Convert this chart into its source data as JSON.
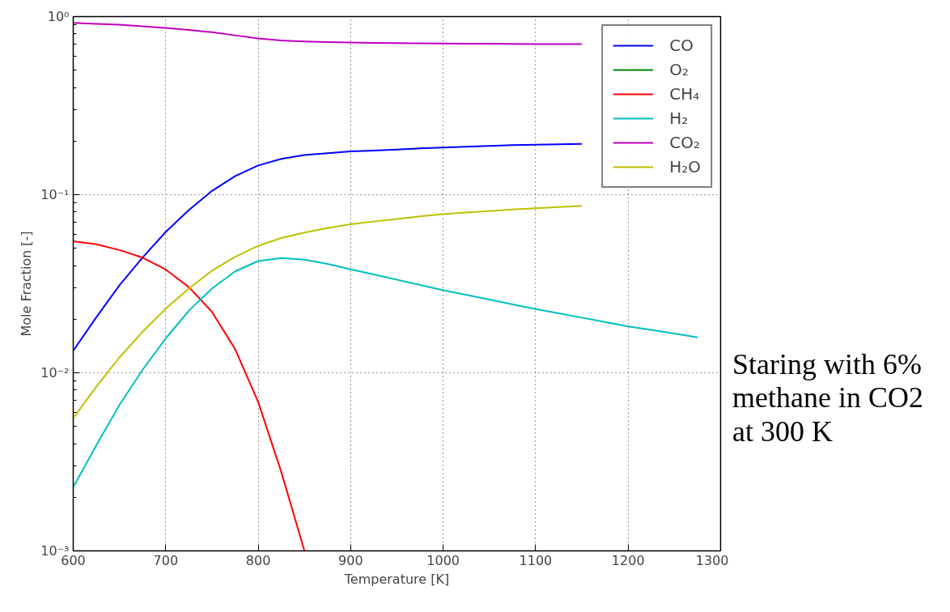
{
  "chart_data": {
    "type": "line",
    "xlabel": "Temperature [K]",
    "ylabel": "Mole Fraction [-]",
    "log": "y",
    "grid": true,
    "legend": "top right",
    "line_style": "solid",
    "marker": "none",
    "xlim": [
      600,
      1300
    ],
    "ylim": [
      0.001,
      1
    ],
    "xticks": [
      600,
      700,
      800,
      900,
      1000,
      1100,
      1200,
      1300
    ],
    "yticks": [
      {
        "value": 0.001,
        "label": "10⁻³"
      },
      {
        "value": 0.01,
        "label": "10⁻²"
      },
      {
        "value": 0.1,
        "label": "10⁻¹"
      },
      {
        "value": 1,
        "label": "10⁰"
      }
    ],
    "annotations": [
      "Staring with 6%\nmethane in CO2\nat 300 K"
    ],
    "series": [
      {
        "name": "CO",
        "color": "#0000ff",
        "x": [
          600,
          625,
          650,
          675,
          700,
          725,
          750,
          775,
          800,
          825,
          850,
          875,
          900,
          925,
          950,
          975,
          1000,
          1025,
          1050,
          1075,
          1100,
          1125,
          1150
        ],
        "values": [
          0.0133,
          0.0205,
          0.031,
          0.0444,
          0.0618,
          0.0819,
          0.105,
          0.127,
          0.146,
          0.159,
          0.167,
          0.171,
          0.175,
          0.177,
          0.179,
          0.182,
          0.184,
          0.186,
          0.188,
          0.19,
          0.191,
          0.192,
          0.193
        ]
      },
      {
        "name": "O₂",
        "color": "#008000",
        "values": [
          null
        ]
      },
      {
        "name": "CH₄",
        "color": "#ff0000",
        "x": [
          600,
          625,
          650,
          675,
          700,
          725,
          750,
          775,
          800,
          825,
          850
        ],
        "values": [
          0.0548,
          0.0527,
          0.0489,
          0.0443,
          0.038,
          0.0303,
          0.022,
          0.0136,
          0.00685,
          0.00277,
          0.001
        ]
      },
      {
        "name": "H₂",
        "color": "#00bfbf",
        "x": [
          600,
          625,
          650,
          675,
          700,
          725,
          750,
          775,
          800,
          825,
          850,
          875,
          900,
          925,
          950,
          975,
          1000,
          1025,
          1050,
          1075,
          1100,
          1125,
          1150,
          1175,
          1200,
          1225,
          1250,
          1275
        ],
        "values": [
          0.00228,
          0.00392,
          0.0066,
          0.0104,
          0.0156,
          0.0223,
          0.0297,
          0.0371,
          0.0424,
          0.0441,
          0.0432,
          0.0409,
          0.0381,
          0.0357,
          0.0333,
          0.0311,
          0.0291,
          0.0274,
          0.0258,
          0.0242,
          0.0228,
          0.0216,
          0.0204,
          0.0193,
          0.0182,
          0.0174,
          0.0166,
          0.0158
        ]
      },
      {
        "name": "CO₂",
        "color": "#bf00bf",
        "x": [
          600,
          625,
          650,
          675,
          700,
          725,
          750,
          775,
          800,
          825,
          850,
          875,
          900,
          925,
          950,
          975,
          1000,
          1025,
          1050,
          1075,
          1100,
          1125,
          1150
        ],
        "values": [
          0.921,
          0.911,
          0.9,
          0.883,
          0.863,
          0.842,
          0.817,
          0.785,
          0.754,
          0.734,
          0.725,
          0.72,
          0.715,
          0.712,
          0.71,
          0.708,
          0.706,
          0.705,
          0.704,
          0.702,
          0.701,
          0.7,
          0.7
        ]
      },
      {
        "name": "H₂O",
        "color": "#bfbf00",
        "x": [
          600,
          625,
          650,
          675,
          700,
          725,
          750,
          775,
          800,
          825,
          850,
          875,
          900,
          925,
          950,
          975,
          1000,
          1025,
          1050,
          1075,
          1100,
          1125,
          1150
        ],
        "values": [
          0.00555,
          0.00836,
          0.0122,
          0.017,
          0.0229,
          0.0297,
          0.0374,
          0.0447,
          0.0516,
          0.0571,
          0.0613,
          0.065,
          0.0683,
          0.0707,
          0.073,
          0.0755,
          0.0777,
          0.0794,
          0.081,
          0.0826,
          0.084,
          0.0853,
          0.0864
        ]
      }
    ]
  }
}
